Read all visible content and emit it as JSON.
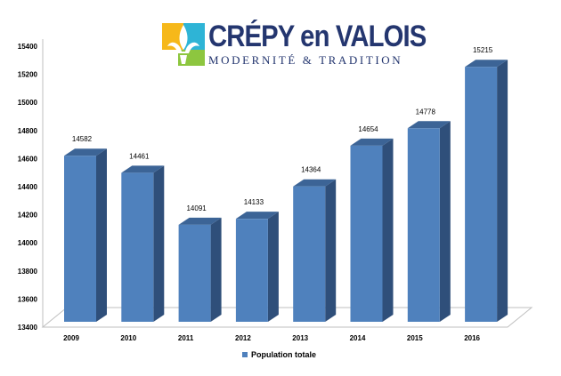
{
  "logo": {
    "title": "CRÉPY en VALOIS",
    "subtitle": "MODERNITÉ & TRADITION",
    "colors": [
      "#f6b81a",
      "#2eb4d6",
      "#8dc63f",
      "#24366f"
    ]
  },
  "chart_data": {
    "type": "bar",
    "style": "3d-column",
    "categories": [
      "2009",
      "2010",
      "2011",
      "2012",
      "2013",
      "2014",
      "2015",
      "2016"
    ],
    "series": [
      {
        "name": "Population totale",
        "values": [
          14582,
          14461,
          14091,
          14133,
          14364,
          14654,
          14778,
          15215
        ],
        "color": "#4f81bd"
      }
    ],
    "data_labels": [
      "14582",
      "14461",
      "14091",
      "14133",
      "14364",
      "14654",
      "14778",
      "15215"
    ],
    "yticks": [
      "13400",
      "13600",
      "13800",
      "14000",
      "14200",
      "14400",
      "14600",
      "14800",
      "15000",
      "15200",
      "15400"
    ],
    "ylim": [
      13400,
      15400
    ],
    "grid": false,
    "legend": "bottom"
  }
}
